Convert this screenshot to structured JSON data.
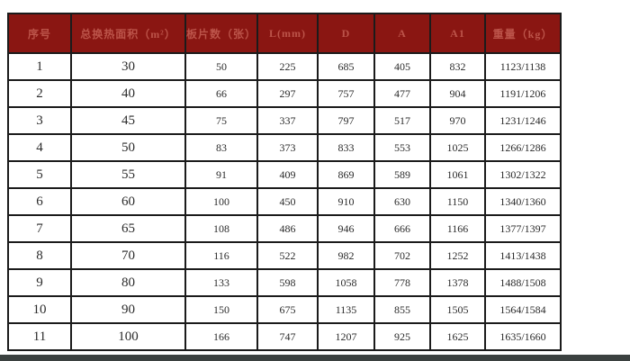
{
  "page": {
    "background": "#ffffff",
    "bottom_bar_color": "#3b4140"
  },
  "table": {
    "header_bg": "#8a1612",
    "header_text_color": "#bc544a",
    "border_color": "#1b1b1b",
    "columns": [
      "序号",
      "总换热面积（m²）",
      "板片数（张）",
      "L(mm)",
      "D",
      "A",
      "A1",
      "重量（kg）"
    ],
    "rows": [
      [
        "1",
        "30",
        "50",
        "225",
        "685",
        "405",
        "832",
        "1123/1138"
      ],
      [
        "2",
        "40",
        "66",
        "297",
        "757",
        "477",
        "904",
        "1191/1206"
      ],
      [
        "3",
        "45",
        "75",
        "337",
        "797",
        "517",
        "970",
        "1231/1246"
      ],
      [
        "4",
        "50",
        "83",
        "373",
        "833",
        "553",
        "1025",
        "1266/1286"
      ],
      [
        "5",
        "55",
        "91",
        "409",
        "869",
        "589",
        "1061",
        "1302/1322"
      ],
      [
        "6",
        "60",
        "100",
        "450",
        "910",
        "630",
        "1150",
        "1340/1360"
      ],
      [
        "7",
        "65",
        "108",
        "486",
        "946",
        "666",
        "1166",
        "1377/1397"
      ],
      [
        "8",
        "70",
        "116",
        "522",
        "982",
        "702",
        "1252",
        "1413/1438"
      ],
      [
        "9",
        "80",
        "133",
        "598",
        "1058",
        "778",
        "1378",
        "1488/1508"
      ],
      [
        "10",
        "90",
        "150",
        "675",
        "1135",
        "855",
        "1505",
        "1564/1584"
      ],
      [
        "11",
        "100",
        "166",
        "747",
        "1207",
        "925",
        "1625",
        "1635/1660"
      ]
    ]
  }
}
